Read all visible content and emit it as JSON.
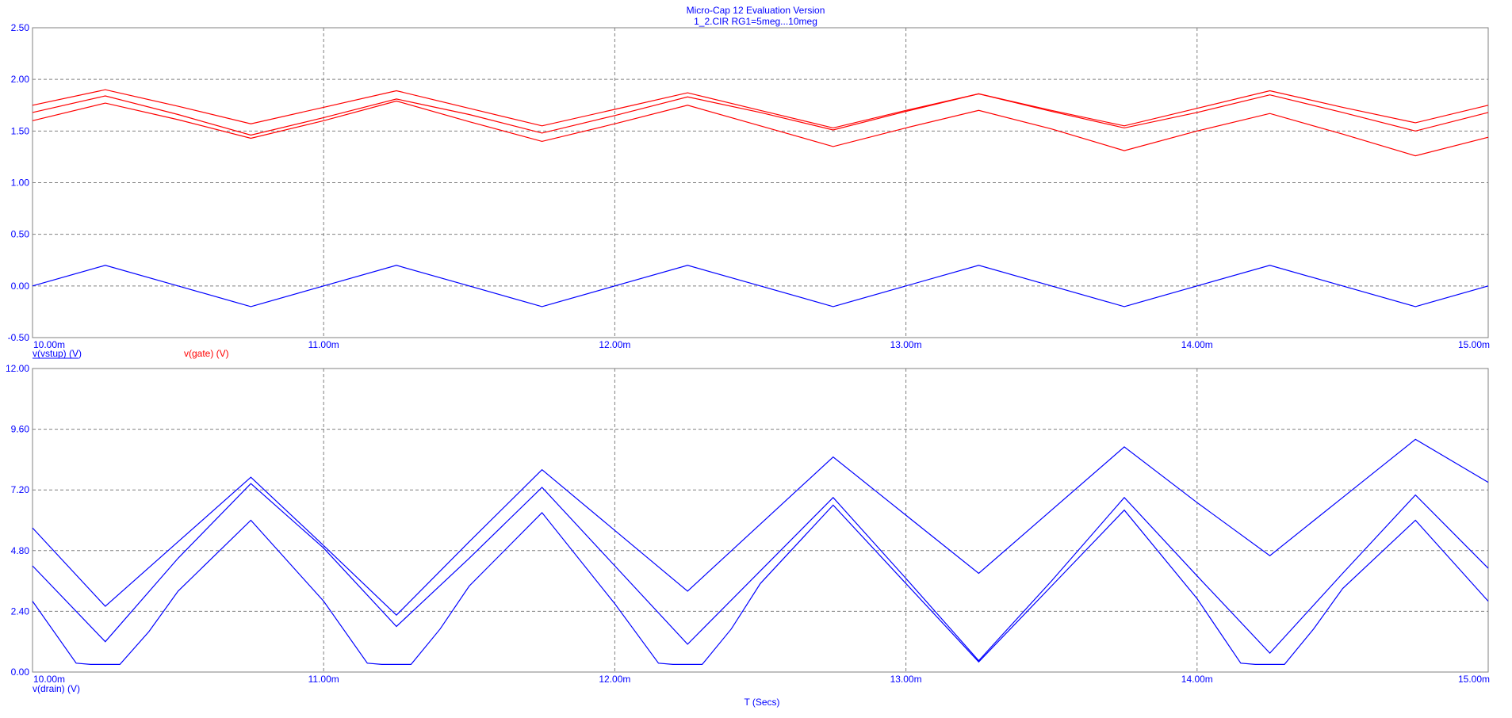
{
  "header": {
    "title": "Micro-Cap 12 Evaluation Version",
    "subtitle": "1_2.CIR RG1=5meg...10meg"
  },
  "chart_data": [
    {
      "type": "line",
      "name": "upper-plot",
      "xlim": [
        0.01,
        0.015
      ],
      "ylim": [
        -0.5,
        2.5
      ],
      "x_ticks": [
        0.01,
        0.011,
        0.012,
        0.013,
        0.014,
        0.015
      ],
      "x_tick_labels": [
        "10.00m",
        "11.00m",
        "12.00m",
        "13.00m",
        "14.00m",
        "15.00m"
      ],
      "y_ticks": [
        -0.5,
        0,
        0.5,
        1.0,
        1.5,
        2.0,
        2.5
      ],
      "y_tick_labels": [
        "-0.50",
        "0.00",
        "0.50",
        "1.00",
        "1.50",
        "2.00",
        "2.50"
      ],
      "grid": true,
      "legend": [
        {
          "label": "v(vstup) (V)",
          "color": "#0000ff"
        },
        {
          "label": "v(gate) (V)",
          "color": "#ff0000"
        }
      ],
      "series": [
        {
          "label": "v(vstup) (V)",
          "color": "#0000ff",
          "x": [
            0.01,
            0.01025,
            0.0105,
            0.01075,
            0.011,
            0.01125,
            0.0115,
            0.01175,
            0.012,
            0.01225,
            0.0125,
            0.01275,
            0.013,
            0.01325,
            0.0135,
            0.01375,
            0.014,
            0.01425,
            0.0145,
            0.01475,
            0.015
          ],
          "y": [
            0.0,
            0.2,
            0.0,
            -0.2,
            0.0,
            0.2,
            0.0,
            -0.2,
            0.0,
            0.2,
            0.0,
            -0.2,
            0.0,
            0.2,
            0.0,
            -0.2,
            0.0,
            0.2,
            0.0,
            -0.2,
            0.0
          ]
        },
        {
          "label": "v(gate) (V)",
          "color": "#ff0000",
          "x": [
            0.01,
            0.01025,
            0.0105,
            0.01075,
            0.011,
            0.01125,
            0.0115,
            0.01175,
            0.012,
            0.01225,
            0.0125,
            0.01275,
            0.013,
            0.01325,
            0.0135,
            0.01375,
            0.014,
            0.01425,
            0.0145,
            0.01475,
            0.015
          ],
          "y": [
            1.75,
            1.9,
            1.74,
            1.57,
            1.73,
            1.89,
            1.72,
            1.55,
            1.71,
            1.87,
            1.7,
            1.53,
            1.7,
            1.86,
            1.7,
            1.55,
            1.72,
            1.89,
            1.73,
            1.58,
            1.75
          ]
        },
        {
          "label": "v(gate) (V)",
          "color": "#ff0000",
          "x": [
            0.01,
            0.01025,
            0.0105,
            0.01075,
            0.011,
            0.01125,
            0.0115,
            0.01175,
            0.012,
            0.01225,
            0.0125,
            0.01275,
            0.013,
            0.01325,
            0.0135,
            0.01375,
            0.014,
            0.01425,
            0.0145,
            0.01475,
            0.015
          ],
          "y": [
            1.68,
            1.84,
            1.66,
            1.46,
            1.63,
            1.81,
            1.66,
            1.48,
            1.65,
            1.83,
            1.68,
            1.51,
            1.69,
            1.86,
            1.69,
            1.53,
            1.68,
            1.85,
            1.68,
            1.5,
            1.68
          ]
        },
        {
          "label": "v(gate) (V)",
          "color": "#ff0000",
          "x": [
            0.01,
            0.01025,
            0.0105,
            0.01075,
            0.011,
            0.01125,
            0.0115,
            0.01175,
            0.012,
            0.01225,
            0.0125,
            0.01275,
            0.013,
            0.01325,
            0.0135,
            0.01375,
            0.014,
            0.01425,
            0.0145,
            0.01475,
            0.015
          ],
          "y": [
            1.6,
            1.77,
            1.61,
            1.43,
            1.6,
            1.79,
            1.59,
            1.4,
            1.57,
            1.75,
            1.55,
            1.35,
            1.53,
            1.7,
            1.52,
            1.31,
            1.5,
            1.67,
            1.47,
            1.26,
            1.44
          ]
        }
      ]
    },
    {
      "type": "line",
      "name": "lower-plot",
      "xlabel": "T (Secs)",
      "xlim": [
        0.01,
        0.015
      ],
      "ylim": [
        0,
        12
      ],
      "x_ticks": [
        0.01,
        0.011,
        0.012,
        0.013,
        0.014,
        0.015
      ],
      "x_tick_labels": [
        "10.00m",
        "11.00m",
        "12.00m",
        "13.00m",
        "14.00m",
        "15.00m"
      ],
      "y_ticks": [
        0,
        2.4,
        4.8,
        7.2,
        9.6,
        12
      ],
      "y_tick_labels": [
        "0.00",
        "2.40",
        "4.80",
        "7.20",
        "9.60",
        "12.00"
      ],
      "grid": true,
      "legend": [
        {
          "label": "v(drain) (V)",
          "color": "#0000ff"
        }
      ],
      "series": [
        {
          "label": "v(drain) (V)",
          "color": "#0000ff",
          "x": [
            0.01,
            0.01025,
            0.0105,
            0.01075,
            0.011,
            0.01125,
            0.0115,
            0.01175,
            0.012,
            0.01225,
            0.0125,
            0.01275,
            0.013,
            0.01325,
            0.0135,
            0.01375,
            0.014,
            0.01425,
            0.0145,
            0.01475,
            0.015
          ],
          "y": [
            5.7,
            2.6,
            5.15,
            7.7,
            5.0,
            2.25,
            5.15,
            8.0,
            5.6,
            3.2,
            5.85,
            8.5,
            6.2,
            3.9,
            6.4,
            8.9,
            6.7,
            4.6,
            6.9,
            9.2,
            7.5
          ]
        },
        {
          "label": "v(drain) (V)",
          "color": "#0000ff",
          "x": [
            0.01,
            0.01025,
            0.0105,
            0.01075,
            0.011,
            0.01125,
            0.0115,
            0.01175,
            0.012,
            0.01225,
            0.0125,
            0.01275,
            0.013,
            0.01325,
            0.0135,
            0.01375,
            0.014,
            0.01425,
            0.0145,
            0.01475,
            0.015
          ],
          "y": [
            4.2,
            1.2,
            4.5,
            7.45,
            4.9,
            1.8,
            4.5,
            7.3,
            4.2,
            1.1,
            4.0,
            6.9,
            3.7,
            0.45,
            3.6,
            6.9,
            3.8,
            0.75,
            3.9,
            7.0,
            4.1
          ]
        },
        {
          "label": "v(drain) (V)",
          "color": "#0000ff",
          "x": [
            0.01,
            0.01015,
            0.0102,
            0.01025,
            0.0103,
            0.0104,
            0.0105,
            0.01075,
            0.011,
            0.01115,
            0.0112,
            0.01125,
            0.0113,
            0.0114,
            0.0115,
            0.01175,
            0.012,
            0.01215,
            0.0122,
            0.01225,
            0.0123,
            0.0124,
            0.0125,
            0.01275,
            0.013,
            0.01325,
            0.0135,
            0.01375,
            0.014,
            0.01415,
            0.0142,
            0.01425,
            0.0143,
            0.0144,
            0.0145,
            0.01475,
            0.015
          ],
          "y": [
            2.8,
            0.35,
            0.3,
            0.3,
            0.3,
            1.6,
            3.2,
            6.0,
            2.8,
            0.35,
            0.3,
            0.3,
            0.3,
            1.7,
            3.4,
            6.3,
            2.7,
            0.35,
            0.3,
            0.3,
            0.3,
            1.7,
            3.5,
            6.6,
            3.5,
            0.4,
            3.4,
            6.4,
            2.9,
            0.35,
            0.3,
            0.3,
            0.3,
            1.7,
            3.3,
            6.0,
            2.8
          ]
        }
      ]
    }
  ]
}
